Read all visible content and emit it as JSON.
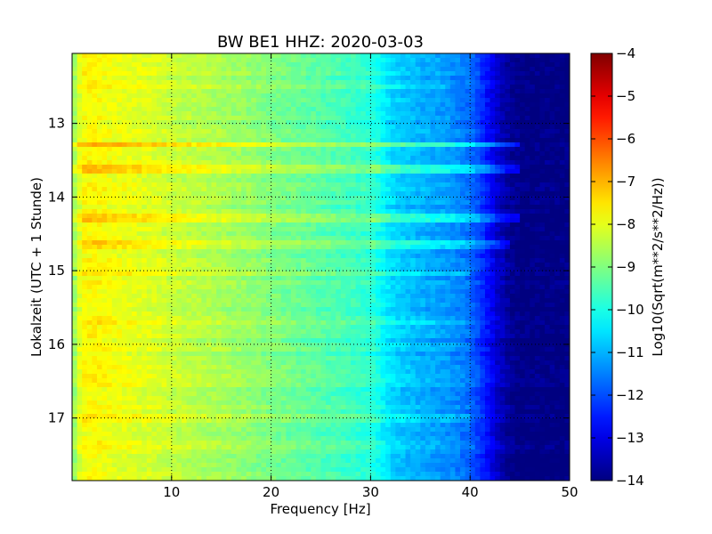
{
  "chart_data": {
    "type": "heatmap",
    "title": "BW BE1 HHZ: 2020-03-03",
    "xlabel": "Frequency [Hz]",
    "ylabel": "Lokalzeit (UTC + 1 Stunde)",
    "xlim": [
      0,
      50
    ],
    "ylim": [
      12.05,
      17.85
    ],
    "x_ticks": [
      10,
      20,
      30,
      40,
      50
    ],
    "y_ticks": [
      13,
      14,
      15,
      16,
      17
    ],
    "x_tick_labels": [
      "10",
      "20",
      "30",
      "40",
      "50"
    ],
    "y_tick_labels": [
      "13",
      "14",
      "15",
      "16",
      "17"
    ],
    "grid": true,
    "colormap": "jet",
    "colorbar": {
      "label": "Log10(Sqrt(m**2/s**2/Hz))",
      "range": [
        -14,
        -4
      ],
      "ticks": [
        -4,
        -5,
        -6,
        -7,
        -8,
        -9,
        -10,
        -11,
        -12,
        -13,
        -14
      ],
      "tick_labels": [
        "−4",
        "−5",
        "−6",
        "−7",
        "−8",
        "−9",
        "−10",
        "−11",
        "−12",
        "−13",
        "−14"
      ]
    },
    "spectrum_profile": {
      "frequency_hz": [
        0,
        1,
        2,
        4,
        6,
        8,
        10,
        15,
        20,
        25,
        30,
        31,
        32,
        34,
        36,
        38,
        40,
        41,
        42,
        43,
        44,
        45,
        46,
        50
      ],
      "level": [
        -9.0,
        -7.8,
        -7.7,
        -7.9,
        -8.0,
        -8.1,
        -8.3,
        -8.6,
        -9.0,
        -9.4,
        -9.8,
        -10.2,
        -10.6,
        -10.9,
        -11.1,
        -11.3,
        -11.7,
        -12.2,
        -12.8,
        -13.4,
        -13.8,
        -14.0,
        -14.0,
        -14.0
      ]
    },
    "bright_bands": [
      {
        "time": 13.3,
        "delta": 1.3,
        "max_freq_hz": 45
      },
      {
        "time": 13.63,
        "delta": 1.2,
        "max_freq_hz": 45
      },
      {
        "time": 14.3,
        "delta": 1.2,
        "max_freq_hz": 45
      },
      {
        "time": 14.63,
        "delta": 1.1,
        "max_freq_hz": 44
      },
      {
        "time": 14.68,
        "delta": 0.8,
        "max_freq_hz": 44
      },
      {
        "time": 15.05,
        "delta": 0.5,
        "max_freq_hz": 40
      },
      {
        "time": 15.7,
        "delta": 0.4,
        "max_freq_hz": 40
      },
      {
        "time": 16.0,
        "delta": 0.3,
        "max_freq_hz": 40
      },
      {
        "time": 17.0,
        "delta": 0.3,
        "max_freq_hz": 40
      },
      {
        "time": 12.5,
        "delta": 0.3,
        "max_freq_hz": 38
      }
    ]
  }
}
